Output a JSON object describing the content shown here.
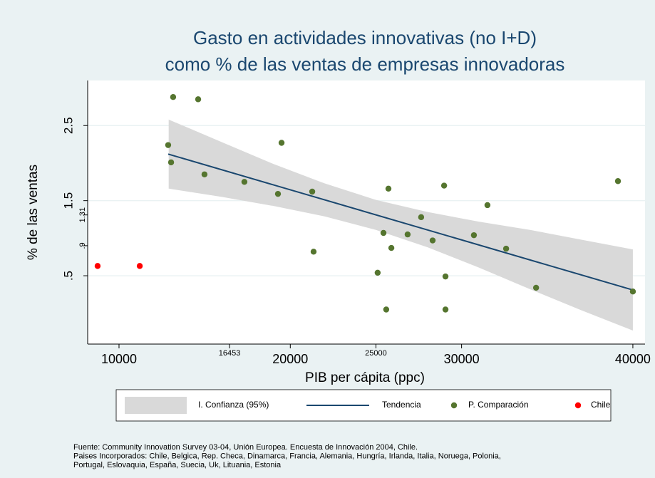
{
  "chart_data": {
    "type": "scatter",
    "title": [
      "Gasto en actividades innovativas (no I+D)",
      "como % de las ventas de empresas innovadoras"
    ],
    "x_label": "PIB per cápita (ppc)",
    "y_label": "% de las ventas",
    "xlim": [
      8170,
      40710
    ],
    "ylim": [
      -0.41,
      3.1
    ],
    "xticks": [
      10000,
      20000,
      30000,
      40000
    ],
    "xticks_minor": [
      16453,
      25000
    ],
    "yticks": [
      {
        "value": 0.5,
        "label": ".5"
      },
      1.5,
      2.5
    ],
    "yticks_minor": [
      {
        "value": 0.9,
        "label": ".9"
      },
      1.31
    ],
    "grid": true,
    "series": [
      {
        "name": "I. Confianza (95%)",
        "kind": "band",
        "color": "#d9d9d9",
        "x": [
          12900,
          16000,
          19000,
          22000,
          25000,
          28000,
          31000,
          34000,
          37000,
          40000
        ],
        "upper": [
          2.58,
          2.28,
          1.99,
          1.73,
          1.51,
          1.35,
          1.22,
          1.11,
          0.98,
          0.85
        ],
        "lower": [
          1.66,
          1.55,
          1.43,
          1.29,
          1.11,
          0.88,
          0.61,
          0.32,
          0.04,
          -0.23
        ]
      },
      {
        "name": "Tendencia",
        "kind": "line",
        "color": "#1a476f",
        "x": [
          12871,
          40000
        ],
        "y": [
          2.12,
          0.31
        ]
      },
      {
        "name": "P. Comparación",
        "kind": "points",
        "color": "#55752f",
        "x": [
          13160,
          14620,
          12870,
          13040,
          14990,
          17320,
          19490,
          19280,
          21280,
          21360,
          25730,
          28980,
          25100,
          25440,
          25900,
          25600,
          26850,
          27640,
          28310,
          29060,
          29060,
          30720,
          31510,
          32600,
          34350,
          39130,
          40000
        ],
        "y": [
          2.88,
          2.85,
          2.24,
          2.01,
          1.85,
          1.75,
          2.27,
          1.59,
          1.62,
          0.82,
          1.66,
          1.7,
          0.54,
          1.07,
          0.87,
          0.05,
          1.05,
          1.28,
          0.97,
          0.49,
          0.05,
          1.04,
          1.44,
          0.86,
          0.34,
          1.76,
          0.29
        ]
      },
      {
        "name": "Chile",
        "kind": "points",
        "color": "#ff0000",
        "x": [
          8750,
          11210
        ],
        "y": [
          0.63,
          0.63
        ]
      }
    ],
    "notes": [
      "Fuente: Community Innovation Survey 03-04, Unión Europea. Encuesta de Innovación 2004, Chile.",
      "Paises Incorporados: Chile, Belgica, Rep. Checa, Dinamarca, Francia, Alemania, Hungría, Irlanda, Italia, Noruega, Polonia,",
      "Portugal, Eslovaquia, España, Suecia, Uk, Lituania, Estonia"
    ]
  }
}
